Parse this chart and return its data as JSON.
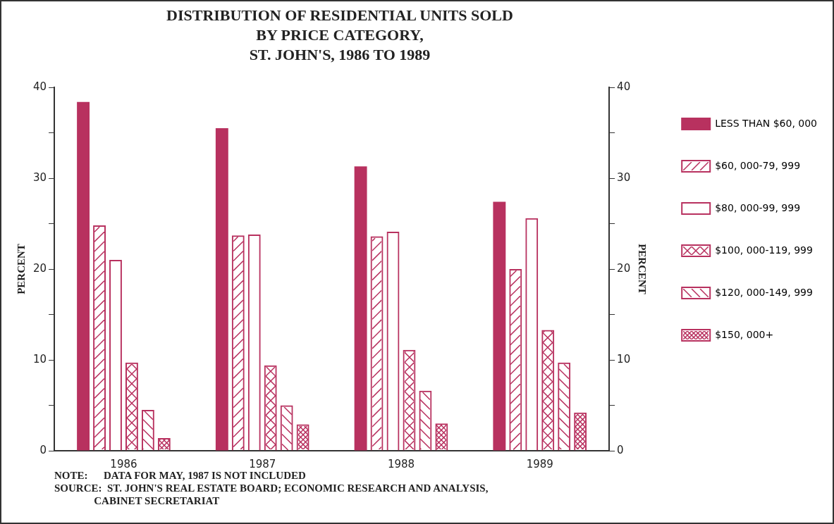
{
  "chart_data": {
    "type": "bar",
    "title": "DISTRIBUTION OF RESIDENTIAL UNITS SOLD\nBY PRICE CATEGORY,\nST. JOHN'S, 1986 TO 1989",
    "ylabel": "PERCENT",
    "y2label": "PERCENT",
    "categories": [
      "1986",
      "1987",
      "1988",
      "1989"
    ],
    "series": [
      {
        "name": "LESS THAN $60, 000",
        "color": "#b8315f",
        "values": [
          38.4,
          35.5,
          31.3,
          27.4
        ]
      },
      {
        "name": "$60, 000-79, 999",
        "color": "#b8315f",
        "values": [
          24.8,
          23.7,
          23.6,
          20.0
        ]
      },
      {
        "name": "$80, 000-99, 999",
        "color": "#b8315f",
        "values": [
          21.0,
          23.8,
          24.1,
          25.6
        ]
      },
      {
        "name": "$100, 000-119, 999",
        "color": "#b8315f",
        "values": [
          9.7,
          9.4,
          11.1,
          13.3
        ]
      },
      {
        "name": "$120, 000-149, 999",
        "color": "#b8315f",
        "values": [
          4.5,
          5.0,
          6.6,
          9.7
        ]
      },
      {
        "name": "$150, 000+",
        "color": "#b8315f",
        "values": [
          1.4,
          2.9,
          3.0,
          4.2
        ]
      }
    ],
    "ylim": [
      0,
      40
    ],
    "yticks": [
      0,
      {
        "value": 5,
        "label": null
      },
      10,
      {
        "value": 15,
        "label": null
      },
      20,
      {
        "value": 25,
        "label": null
      },
      30,
      {
        "value": 35,
        "label": null
      },
      40
    ],
    "y2lim": [
      0,
      40
    ],
    "y2ticks": [
      0,
      {
        "value": 5,
        "label": null
      },
      10,
      {
        "value": 15,
        "label": null
      },
      20,
      {
        "value": 25,
        "label": null
      },
      30,
      {
        "value": 35,
        "label": null
      },
      40
    ],
    "legend": "right",
    "grid": false,
    "annotations": [
      "NOTE:      DATA FOR MAY, 1987 IS NOT INCLUDED",
      "SOURCE:  ST. JOHN'S REAL ESTATE BOARD; ECONOMIC RESEARCH AND ANALYSIS,\n               CABINET SECRETARIAT"
    ]
  }
}
